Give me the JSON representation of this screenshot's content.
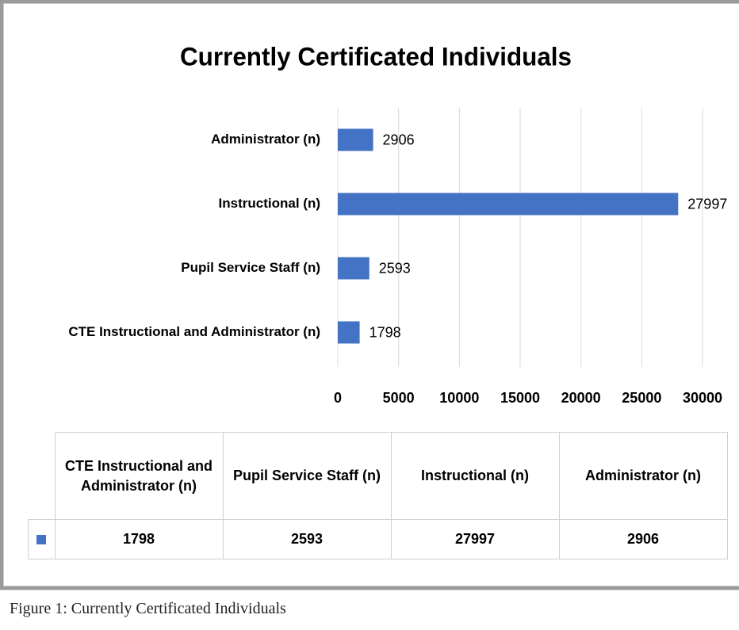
{
  "chart_data": {
    "type": "hbar",
    "title": "Currently Certificated Individuals",
    "categories": [
      "CTE Instructional and Administrator (n)",
      "Pupil Service Staff (n)",
      "Instructional (n)",
      "Administrator (n)"
    ],
    "values": [
      1798,
      2593,
      27997,
      2906
    ],
    "color": "#4472c4",
    "xlim": [
      0,
      30000
    ],
    "xticks": [
      0,
      5000,
      10000,
      15000,
      20000,
      25000,
      30000
    ],
    "grid": true,
    "data_table": true
  },
  "caption": "Figure 1: Currently Certificated Individuals"
}
